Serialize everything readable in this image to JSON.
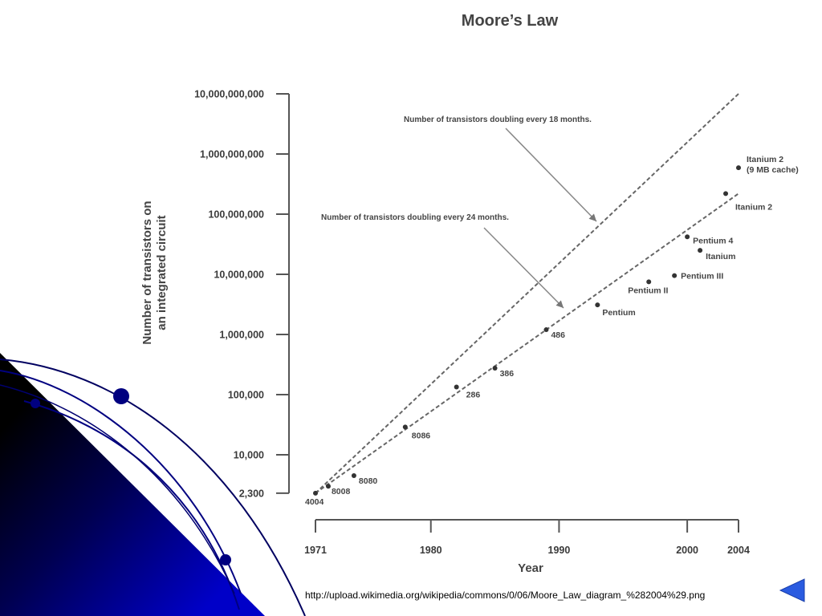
{
  "chart_data": {
    "type": "scatter",
    "title": "Moore’s Law",
    "xlabel": "Year",
    "ylabel_line1": "Number of transistors on",
    "ylabel_line2": "an integrated circuit",
    "y_scale": "log",
    "xlim": [
      1971,
      2004
    ],
    "ylim": [
      2300,
      10000000000
    ],
    "x_ticks": [
      {
        "value": 1971,
        "label": "1971"
      },
      {
        "value": 1980,
        "label": "1980"
      },
      {
        "value": 1990,
        "label": "1990"
      },
      {
        "value": 2000,
        "label": "2000"
      },
      {
        "value": 2004,
        "label": "2004"
      }
    ],
    "y_ticks": [
      {
        "value": 2300,
        "label": "2,300"
      },
      {
        "value": 10000,
        "label": "10,000"
      },
      {
        "value": 100000,
        "label": "100,000"
      },
      {
        "value": 1000000,
        "label": "1,000,000"
      },
      {
        "value": 10000000,
        "label": "10,000,000"
      },
      {
        "value": 100000000,
        "label": "100,000,000"
      },
      {
        "value": 1000000000,
        "label": "1,000,000,000"
      },
      {
        "value": 10000000000,
        "label": "10,000,000,000"
      }
    ],
    "points": [
      {
        "label": "4004",
        "x": 1971,
        "y": 2300
      },
      {
        "label": "8008",
        "x": 1972,
        "y": 3000
      },
      {
        "label": "8080",
        "x": 1974,
        "y": 4500
      },
      {
        "label": "8086",
        "x": 1978,
        "y": 29000
      },
      {
        "label": "286",
        "x": 1982,
        "y": 134000
      },
      {
        "label": "386",
        "x": 1985,
        "y": 275000
      },
      {
        "label": "486",
        "x": 1989,
        "y": 1200000
      },
      {
        "label": "Pentium",
        "x": 1993,
        "y": 3100000
      },
      {
        "label": "Pentium II",
        "x": 1997,
        "y": 7500000
      },
      {
        "label": "Pentium III",
        "x": 1999,
        "y": 9500000
      },
      {
        "label": "Pentium 4",
        "x": 2000,
        "y": 42000000
      },
      {
        "label": "Itanium",
        "x": 2001,
        "y": 25000000
      },
      {
        "label": "Itanium 2",
        "x": 2003,
        "y": 220000000
      },
      {
        "label": "Itanium 2\n(9 MB cache)",
        "x": 2004,
        "y": 592000000
      }
    ],
    "trend_lines": [
      {
        "name": "Number of transistors doubling every 18 months.",
        "from": {
          "x": 1971,
          "y": 2300
        },
        "to": {
          "x": 2004,
          "y": 10000000000
        }
      },
      {
        "name": "Number of transistors doubling every 24 months.",
        "from": {
          "x": 1971,
          "y": 2300
        },
        "to": {
          "x": 2004,
          "y": 220000000
        }
      }
    ]
  },
  "source_url": "http://upload.wikimedia.org/wikipedia/commons/0/06/Moore_Law_diagram_%282004%29.png",
  "colors": {
    "dark_navy": "#000033",
    "blue": "#1010b0",
    "nav_arrow": "#2a5be0"
  },
  "nav": {
    "back_icon": "left-triangle-icon"
  }
}
